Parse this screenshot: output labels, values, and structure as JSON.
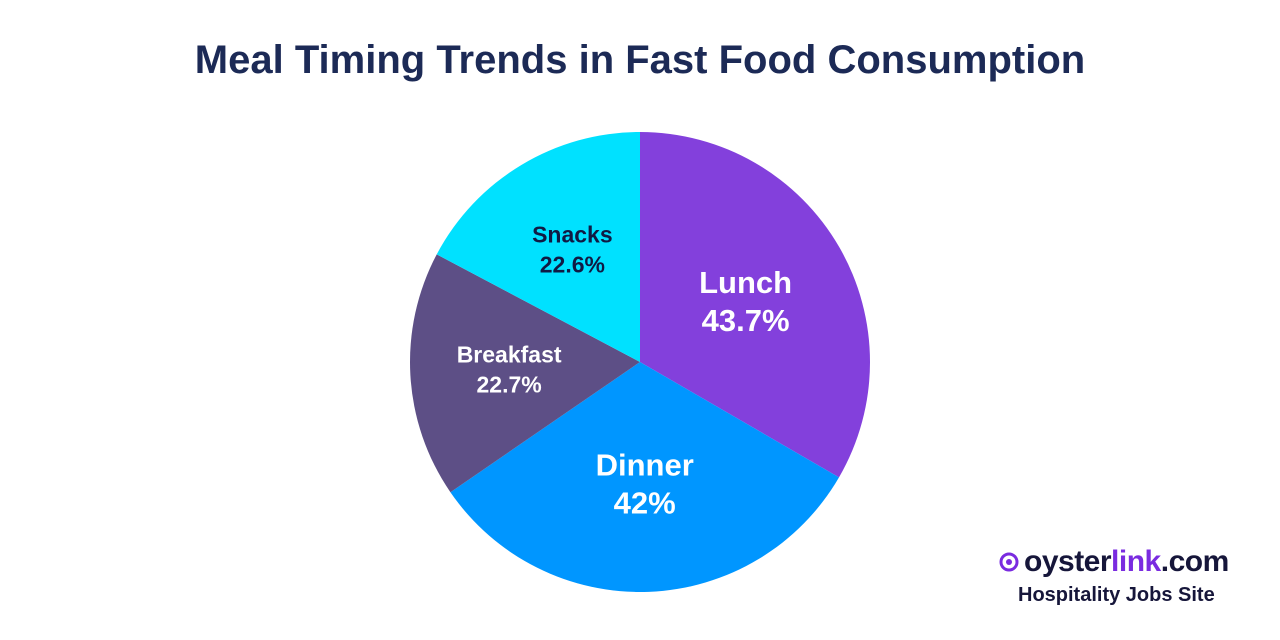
{
  "chart_data": {
    "type": "pie",
    "title": "Meal Timing Trends in Fast Food Consumption",
    "slices": [
      {
        "label": "Lunch",
        "value": 43.7,
        "value_label": "43.7%",
        "color": "#8340dc",
        "text_color": "#ffffff"
      },
      {
        "label": "Dinner",
        "value": 42,
        "value_label": "42%",
        "color": "#0096ff",
        "text_color": "#ffffff"
      },
      {
        "label": "Breakfast",
        "value": 22.7,
        "value_label": "22.7%",
        "color": "#5d4f86",
        "text_color": "#ffffff"
      },
      {
        "label": "Snacks",
        "value": 22.6,
        "value_label": "22.6%",
        "color": "#00e1ff",
        "text_color": "#101a44"
      }
    ]
  },
  "brand": {
    "name_part1": "oyster",
    "name_part2": "link",
    "name_part3": ".com",
    "tagline": "Hospitality Jobs Site",
    "accent_color": "#7a2be0"
  }
}
